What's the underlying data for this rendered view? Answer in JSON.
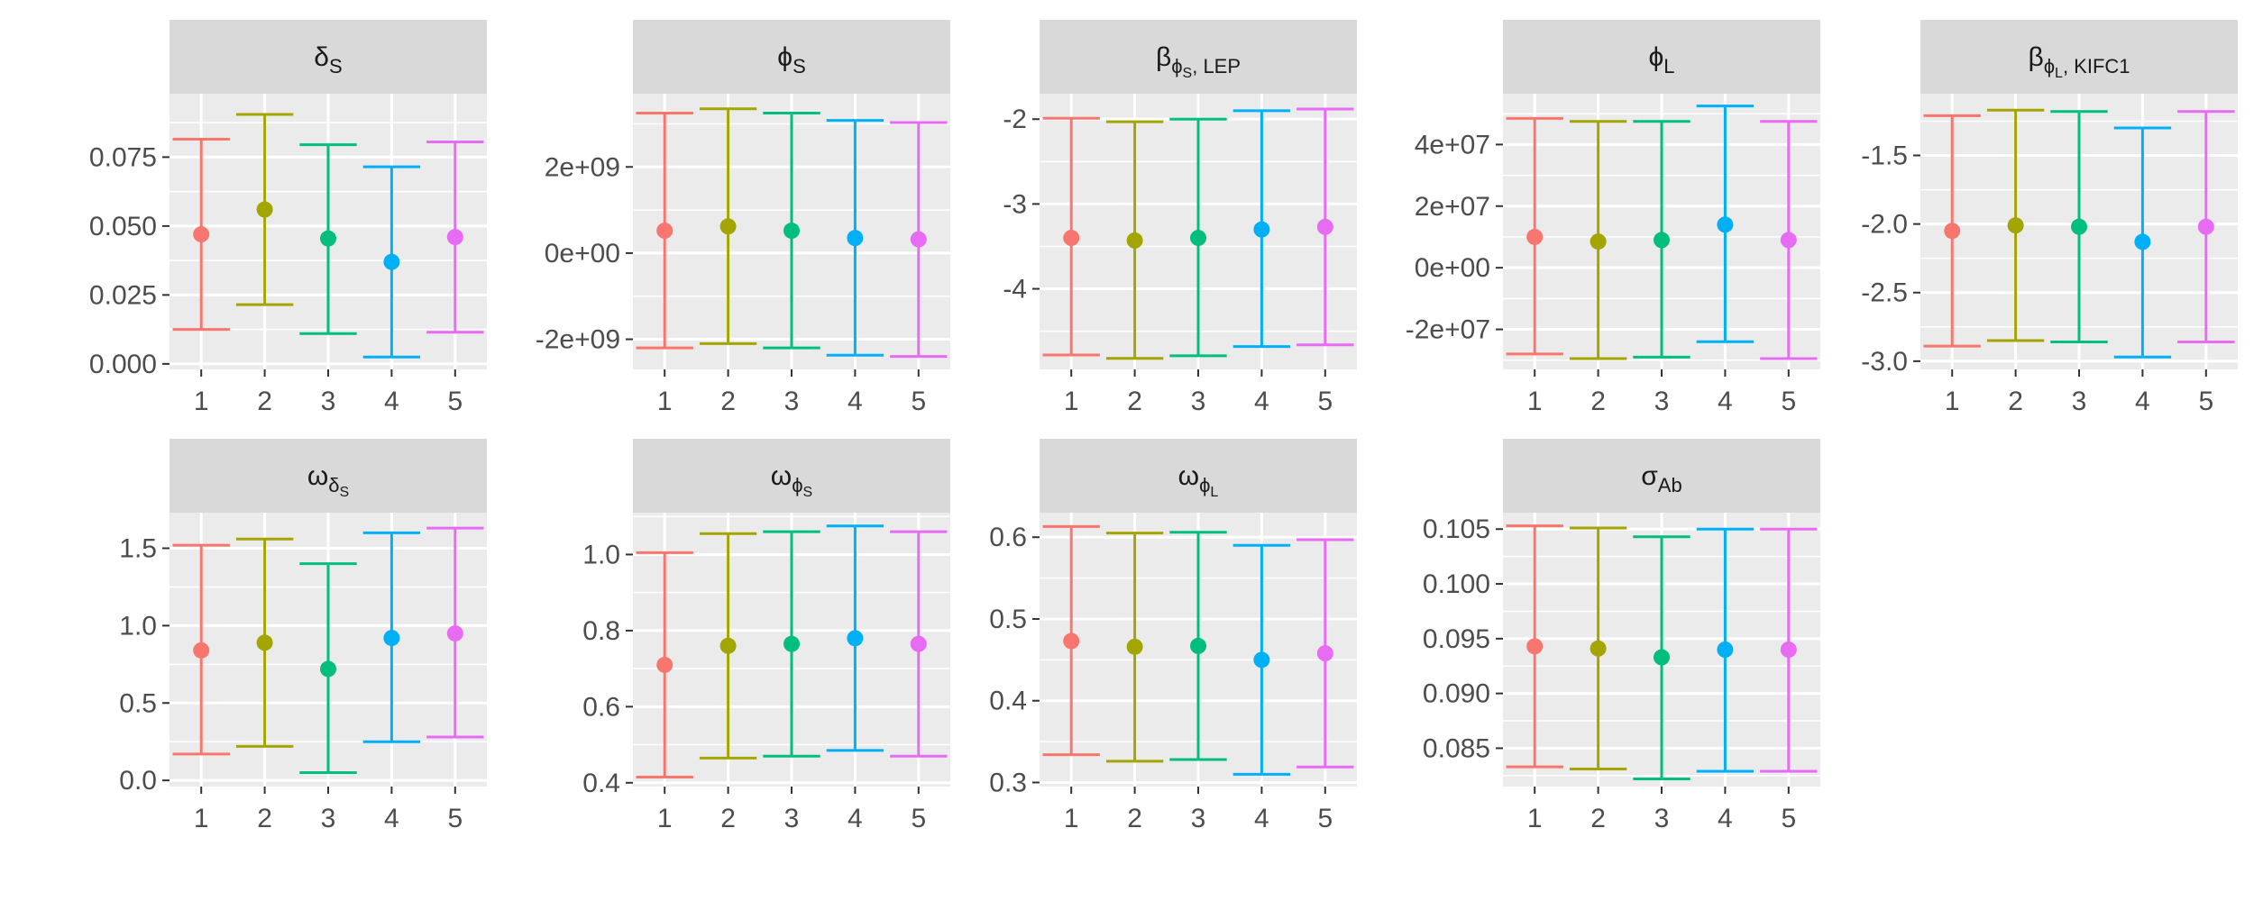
{
  "colors": [
    "#F8766D",
    "#A3A500",
    "#00BF7D",
    "#00B0F6",
    "#E76BF3"
  ],
  "chart_data": [
    {
      "type": "errorbar",
      "strip": {
        "main": "δ",
        "sub": "S"
      },
      "categories": [
        "1",
        "2",
        "3",
        "4",
        "5"
      ],
      "series": [
        {
          "name": "1",
          "value": 0.047,
          "lower": 0.0125,
          "upper": 0.0815
        },
        {
          "name": "2",
          "value": 0.056,
          "lower": 0.0215,
          "upper": 0.0905
        },
        {
          "name": "3",
          "value": 0.0455,
          "lower": 0.011,
          "upper": 0.0795
        },
        {
          "name": "4",
          "value": 0.037,
          "lower": 0.0025,
          "upper": 0.0715
        },
        {
          "name": "5",
          "value": 0.046,
          "lower": 0.0115,
          "upper": 0.0805
        }
      ],
      "ylim": [
        -0.002,
        0.098
      ],
      "yticks": [
        0,
        0.025,
        0.05,
        0.075
      ],
      "ytick_labels": [
        "0.000",
        "0.025",
        "0.050",
        "0.075"
      ]
    },
    {
      "type": "errorbar",
      "strip": {
        "main": "ϕ",
        "sub": "S"
      },
      "categories": [
        "1",
        "2",
        "3",
        "4",
        "5"
      ],
      "series": [
        {
          "name": "1",
          "value": 520000000,
          "lower": -2200000000,
          "upper": 3250000000
        },
        {
          "name": "2",
          "value": 620000000,
          "lower": -2100000000,
          "upper": 3350000000
        },
        {
          "name": "3",
          "value": 520000000,
          "lower": -2200000000,
          "upper": 3250000000
        },
        {
          "name": "4",
          "value": 350000000,
          "lower": -2370000000,
          "upper": 3080000000
        },
        {
          "name": "5",
          "value": 320000000,
          "lower": -2400000000,
          "upper": 3030000000
        }
      ],
      "ylim": [
        -2700000000,
        3700000000
      ],
      "yticks": [
        -2000000000,
        0,
        2000000000
      ],
      "ytick_labels": [
        "-2e+09",
        "0e+00",
        "2e+09"
      ]
    },
    {
      "type": "errorbar",
      "strip": {
        "main": "β",
        "sub": "ϕ",
        "subsub": "S",
        "tail": ", LEP"
      },
      "categories": [
        "1",
        "2",
        "3",
        "4",
        "5"
      ],
      "series": [
        {
          "name": "1",
          "value": -3.4,
          "lower": -4.78,
          "upper": -1.99
        },
        {
          "name": "2",
          "value": -3.43,
          "lower": -4.82,
          "upper": -2.03
        },
        {
          "name": "3",
          "value": -3.4,
          "lower": -4.79,
          "upper": -2.0
        },
        {
          "name": "4",
          "value": -3.3,
          "lower": -4.68,
          "upper": -1.9
        },
        {
          "name": "5",
          "value": -3.27,
          "lower": -4.66,
          "upper": -1.88
        }
      ],
      "ylim": [
        -4.95,
        -1.7
      ],
      "yticks": [
        -4,
        -3,
        -2
      ],
      "ytick_labels": [
        "-4",
        "-3",
        "-2"
      ]
    },
    {
      "type": "errorbar",
      "strip": {
        "main": "ϕ",
        "sub": "L"
      },
      "categories": [
        "1",
        "2",
        "3",
        "4",
        "5"
      ],
      "series": [
        {
          "name": "1",
          "value": 10000000,
          "lower": -28000000,
          "upper": 48500000
        },
        {
          "name": "2",
          "value": 8500000,
          "lower": -29500000,
          "upper": 47500000
        },
        {
          "name": "3",
          "value": 9000000,
          "lower": -29000000,
          "upper": 47500000
        },
        {
          "name": "4",
          "value": 14000000,
          "lower": -24000000,
          "upper": 52500000
        },
        {
          "name": "5",
          "value": 9000000,
          "lower": -29500000,
          "upper": 47500000
        }
      ],
      "ylim": [
        -33000000,
        56500000
      ],
      "yticks": [
        -20000000,
        0,
        20000000,
        40000000
      ],
      "ytick_labels": [
        "-2e+07",
        "0e+00",
        "2e+07",
        "4e+07"
      ]
    },
    {
      "type": "errorbar",
      "strip": {
        "main": "β",
        "sub": "ϕ",
        "subsub": "L",
        "tail": ", KIFC1"
      },
      "categories": [
        "1",
        "2",
        "3",
        "4",
        "5"
      ],
      "series": [
        {
          "name": "1",
          "value": -2.05,
          "lower": -2.89,
          "upper": -1.21
        },
        {
          "name": "2",
          "value": -2.01,
          "lower": -2.85,
          "upper": -1.17
        },
        {
          "name": "3",
          "value": -2.02,
          "lower": -2.86,
          "upper": -1.18
        },
        {
          "name": "4",
          "value": -2.13,
          "lower": -2.97,
          "upper": -1.3
        },
        {
          "name": "5",
          "value": -2.02,
          "lower": -2.86,
          "upper": -1.18
        }
      ],
      "ylim": [
        -3.06,
        -1.05
      ],
      "yticks": [
        -3,
        -2.5,
        -2,
        -1.5
      ],
      "ytick_labels": [
        "-3.0",
        "-2.5",
        "-2.0",
        "-1.5"
      ]
    },
    {
      "type": "errorbar",
      "strip": {
        "main": "ω",
        "sub": "δ",
        "subsub": "S"
      },
      "categories": [
        "1",
        "2",
        "3",
        "4",
        "5"
      ],
      "series": [
        {
          "name": "1",
          "value": 0.84,
          "lower": 0.17,
          "upper": 1.52
        },
        {
          "name": "2",
          "value": 0.89,
          "lower": 0.22,
          "upper": 1.56
        },
        {
          "name": "3",
          "value": 0.72,
          "lower": 0.05,
          "upper": 1.4
        },
        {
          "name": "4",
          "value": 0.92,
          "lower": 0.25,
          "upper": 1.6
        },
        {
          "name": "5",
          "value": 0.95,
          "lower": 0.28,
          "upper": 1.63
        }
      ],
      "ylim": [
        -0.04,
        1.73
      ],
      "yticks": [
        0,
        0.5,
        1,
        1.5
      ],
      "ytick_labels": [
        "0.0",
        "0.5",
        "1.0",
        "1.5"
      ]
    },
    {
      "type": "errorbar",
      "strip": {
        "main": "ω",
        "sub": "ϕ",
        "subsub": "S"
      },
      "categories": [
        "1",
        "2",
        "3",
        "4",
        "5"
      ],
      "series": [
        {
          "name": "1",
          "value": 0.71,
          "lower": 0.415,
          "upper": 1.005
        },
        {
          "name": "2",
          "value": 0.76,
          "lower": 0.465,
          "upper": 1.055
        },
        {
          "name": "3",
          "value": 0.765,
          "lower": 0.47,
          "upper": 1.06
        },
        {
          "name": "4",
          "value": 0.78,
          "lower": 0.485,
          "upper": 1.075
        },
        {
          "name": "5",
          "value": 0.765,
          "lower": 0.47,
          "upper": 1.06
        }
      ],
      "ylim": [
        0.39,
        1.11
      ],
      "yticks": [
        0.4,
        0.6,
        0.8,
        1.0
      ],
      "ytick_labels": [
        "0.4",
        "0.6",
        "0.8",
        "1.0"
      ]
    },
    {
      "type": "errorbar",
      "strip": {
        "main": "ω",
        "sub": "ϕ",
        "subsub": "L"
      },
      "categories": [
        "1",
        "2",
        "3",
        "4",
        "5"
      ],
      "series": [
        {
          "name": "1",
          "value": 0.473,
          "lower": 0.334,
          "upper": 0.613
        },
        {
          "name": "2",
          "value": 0.466,
          "lower": 0.326,
          "upper": 0.605
        },
        {
          "name": "3",
          "value": 0.467,
          "lower": 0.328,
          "upper": 0.606
        },
        {
          "name": "4",
          "value": 0.45,
          "lower": 0.31,
          "upper": 0.59
        },
        {
          "name": "5",
          "value": 0.458,
          "lower": 0.319,
          "upper": 0.597
        }
      ],
      "ylim": [
        0.295,
        0.63
      ],
      "yticks": [
        0.3,
        0.4,
        0.5,
        0.6
      ],
      "ytick_labels": [
        "0.3",
        "0.4",
        "0.5",
        "0.6"
      ]
    },
    {
      "type": "errorbar",
      "strip": {
        "main": "σ",
        "sub": "Ab"
      },
      "categories": [
        "1",
        "2",
        "3",
        "4",
        "5"
      ],
      "series": [
        {
          "name": "1",
          "value": 0.0943,
          "lower": 0.0833,
          "upper": 0.1053
        },
        {
          "name": "2",
          "value": 0.0941,
          "lower": 0.0831,
          "upper": 0.1051
        },
        {
          "name": "3",
          "value": 0.0933,
          "lower": 0.0822,
          "upper": 0.1043
        },
        {
          "name": "4",
          "value": 0.094,
          "lower": 0.0829,
          "upper": 0.105
        },
        {
          "name": "5",
          "value": 0.094,
          "lower": 0.0829,
          "upper": 0.105
        }
      ],
      "ylim": [
        0.0815,
        0.1065
      ],
      "yticks": [
        0.085,
        0.09,
        0.095,
        0.1,
        0.105
      ],
      "ytick_labels": [
        "0.085",
        "0.090",
        "0.095",
        "0.100",
        "0.105"
      ]
    }
  ]
}
